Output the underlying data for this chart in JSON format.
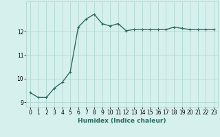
{
  "x": [
    0,
    1,
    2,
    3,
    4,
    5,
    6,
    7,
    8,
    9,
    10,
    11,
    12,
    13,
    14,
    15,
    16,
    17,
    18,
    19,
    20,
    21,
    22,
    23
  ],
  "y": [
    9.4,
    9.2,
    9.2,
    9.6,
    9.85,
    10.3,
    12.2,
    12.55,
    12.75,
    12.35,
    12.25,
    12.35,
    12.05,
    12.1,
    12.1,
    12.1,
    12.1,
    12.1,
    12.2,
    12.15,
    12.1,
    12.1,
    12.1,
    12.1
  ],
  "line_color": "#2d6b60",
  "marker": "+",
  "marker_size": 3,
  "bg_color": "#d6f0ee",
  "grid_color": "#aad4cc",
  "xlabel": "Humidex (Indice chaleur)",
  "xlim": [
    -0.5,
    23.5
  ],
  "ylim": [
    8.8,
    13.3
  ],
  "yticks": [
    9,
    10,
    11,
    12
  ],
  "xtick_labels": [
    "0",
    "1",
    "2",
    "3",
    "4",
    "5",
    "6",
    "7",
    "8",
    "9",
    "10",
    "11",
    "12",
    "13",
    "14",
    "15",
    "16",
    "17",
    "18",
    "19",
    "20",
    "21",
    "22",
    "23"
  ],
  "xlabel_fontsize": 6.5,
  "tick_fontsize": 5.5,
  "line_width": 1.0
}
